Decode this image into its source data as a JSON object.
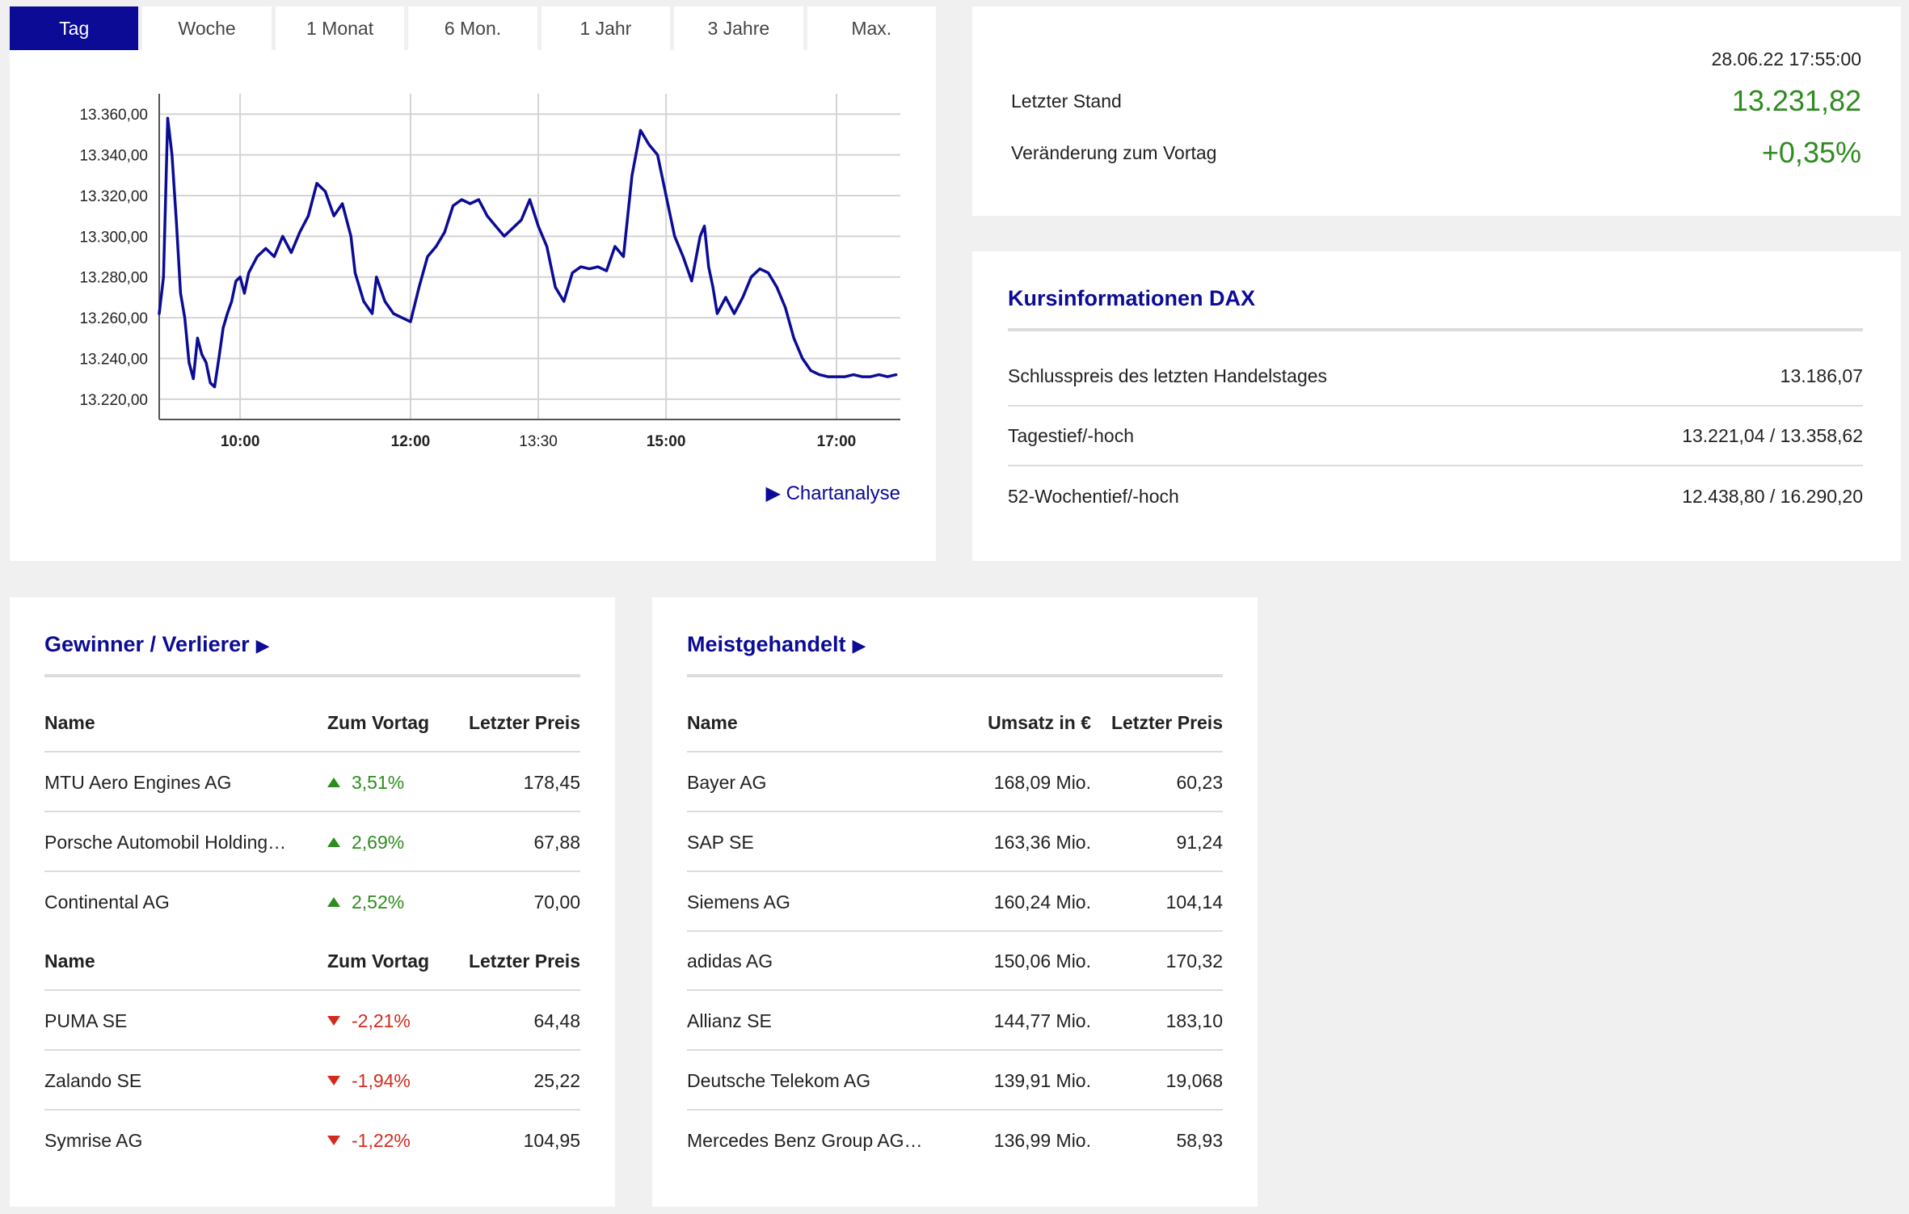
{
  "tabs": [
    "Tag",
    "Woche",
    "1 Monat",
    "6 Mon.",
    "1 Jahr",
    "3 Jahre",
    "Max."
  ],
  "active_tab": 0,
  "chart_link": "▶ Chartanalyse",
  "chart_data": {
    "type": "line",
    "title": "",
    "xlabel": "",
    "ylabel": "",
    "x_tick_labels": [
      "10:00",
      "12:00",
      "13:30",
      "15:00",
      "17:00"
    ],
    "x_ticks_hours": [
      10,
      12,
      13.5,
      15,
      17
    ],
    "xlim_hours": [
      9.05,
      17.75
    ],
    "y_tick_labels": [
      "13.360,00",
      "13.340,00",
      "13.320,00",
      "13.300,00",
      "13.280,00",
      "13.260,00",
      "13.240,00",
      "13.220,00"
    ],
    "y_ticks": [
      13360,
      13340,
      13320,
      13300,
      13280,
      13260,
      13240,
      13220
    ],
    "ylim": [
      13210,
      13370
    ],
    "grid": true,
    "color": "#0b0b96",
    "series": [
      {
        "x_hours": [
          9.05,
          9.1,
          9.15,
          9.2,
          9.25,
          9.3,
          9.35,
          9.4,
          9.45,
          9.5,
          9.55,
          9.6,
          9.65,
          9.7,
          9.75,
          9.8,
          9.85,
          9.9,
          9.95,
          10.0,
          10.05,
          10.1,
          10.2,
          10.3,
          10.4,
          10.5,
          10.6,
          10.7,
          10.8,
          10.9,
          11.0,
          11.1,
          11.2,
          11.3,
          11.35,
          11.45,
          11.55,
          11.6,
          11.7,
          11.8,
          11.9,
          12.0,
          12.1,
          12.2,
          12.3,
          12.4,
          12.5,
          12.6,
          12.7,
          12.8,
          12.9,
          13.0,
          13.1,
          13.2,
          13.3,
          13.4,
          13.5,
          13.6,
          13.7,
          13.8,
          13.9,
          14.0,
          14.1,
          14.2,
          14.3,
          14.4,
          14.5,
          14.6,
          14.7,
          14.8,
          14.9,
          15.0,
          15.1,
          15.2,
          15.3,
          15.4,
          15.45,
          15.5,
          15.55,
          15.6,
          15.7,
          15.8,
          15.9,
          16.0,
          16.1,
          16.2,
          16.3,
          16.4,
          16.5,
          16.6,
          16.7,
          16.8,
          16.9,
          17.0,
          17.1,
          17.2,
          17.3,
          17.4,
          17.5,
          17.6,
          17.7
        ],
        "values": [
          13262,
          13280,
          13358,
          13340,
          13308,
          13272,
          13260,
          13238,
          13230,
          13250,
          13242,
          13238,
          13228,
          13226,
          13240,
          13255,
          13262,
          13268,
          13278,
          13280,
          13272,
          13282,
          13290,
          13294,
          13290,
          13300,
          13292,
          13302,
          13310,
          13326,
          13322,
          13310,
          13316,
          13300,
          13282,
          13268,
          13262,
          13280,
          13268,
          13262,
          13260,
          13258,
          13275,
          13290,
          13295,
          13302,
          13315,
          13318,
          13316,
          13318,
          13310,
          13305,
          13300,
          13304,
          13308,
          13318,
          13305,
          13295,
          13275,
          13268,
          13282,
          13285,
          13284,
          13285,
          13283,
          13295,
          13290,
          13330,
          13352,
          13345,
          13340,
          13320,
          13300,
          13290,
          13278,
          13300,
          13305,
          13285,
          13275,
          13262,
          13270,
          13262,
          13270,
          13280,
          13284,
          13282,
          13275,
          13265,
          13250,
          13240,
          13234,
          13232,
          13231,
          13231,
          13231,
          13232,
          13231,
          13231,
          13232,
          13231,
          13232
        ]
      }
    ]
  },
  "quote": {
    "timestamp": "28.06.22 17:55:00",
    "last_label": "Letzter Stand",
    "last_value": "13.231,82",
    "change_label": "Veränderung zum Vortag",
    "change_value": "+0,35%",
    "positive_color": "#2e8b1f"
  },
  "info": {
    "title": "Kursinformationen DAX",
    "rows": [
      {
        "label": "Schlusspreis des letzten Handelstages",
        "value": "13.186,07"
      },
      {
        "label": "Tagestief/-hoch",
        "value": "13.221,04 / 13.358,62"
      },
      {
        "label": "52-Wochentief/-hoch",
        "value": "12.438,80 / 16.290,20"
      }
    ]
  },
  "gainers_losers": {
    "title": "Gewinner / Verlierer",
    "arrow": "▶",
    "headers": [
      "Name",
      "Zum Vortag",
      "Letzter Preis"
    ],
    "gainers": [
      {
        "name": "MTU Aero Engines AG",
        "change": "3,51%",
        "price": "178,45"
      },
      {
        "name": "Porsche Automobil Holding…",
        "change": "2,69%",
        "price": "67,88"
      },
      {
        "name": "Continental AG",
        "change": "2,52%",
        "price": "70,00"
      }
    ],
    "losers": [
      {
        "name": "PUMA SE",
        "change": "-2,21%",
        "price": "64,48"
      },
      {
        "name": "Zalando SE",
        "change": "-1,94%",
        "price": "25,22"
      },
      {
        "name": "Symrise AG",
        "change": "-1,22%",
        "price": "104,95"
      }
    ],
    "negative_color": "#d42a1d"
  },
  "most_traded": {
    "title": "Meistgehandelt",
    "arrow": "▶",
    "headers": [
      "Name",
      "Umsatz in €",
      "Letzter Preis"
    ],
    "rows": [
      {
        "name": "Bayer AG",
        "volume": "168,09 Mio.",
        "price": "60,23"
      },
      {
        "name": "SAP SE",
        "volume": "163,36 Mio.",
        "price": "91,24"
      },
      {
        "name": "Siemens AG",
        "volume": "160,24 Mio.",
        "price": "104,14"
      },
      {
        "name": "adidas AG",
        "volume": "150,06 Mio.",
        "price": "170,32"
      },
      {
        "name": "Allianz SE",
        "volume": "144,77 Mio.",
        "price": "183,10"
      },
      {
        "name": "Deutsche Telekom AG",
        "volume": "139,91 Mio.",
        "price": "19,068"
      },
      {
        "name": "Mercedes Benz Group AG…",
        "volume": "136,99 Mio.",
        "price": "58,93"
      }
    ]
  }
}
